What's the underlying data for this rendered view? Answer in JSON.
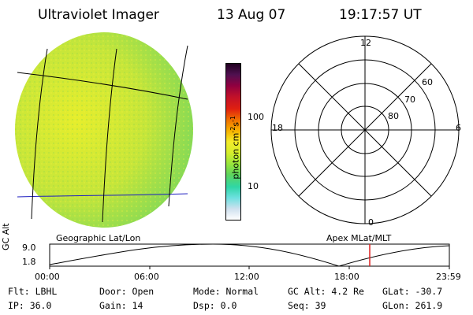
{
  "header": {
    "instrument": "Ultraviolet Imager",
    "date": "13 Aug 07",
    "time": "19:17:57 UT"
  },
  "colorbar": {
    "unit_main": "photon cm",
    "unit_exp1": "-2",
    "unit_mid": "s",
    "unit_exp2": "-1",
    "ticks": [
      "100",
      "10"
    ],
    "colors": [
      "#ffffff",
      "#cfe0ee",
      "#6ee0e0",
      "#2fd6a6",
      "#5ed45c",
      "#9ae63c",
      "#d6ee2c",
      "#f4ec2a",
      "#f7b200",
      "#f07000",
      "#e02010",
      "#c0102a",
      "#900040",
      "#501050",
      "#200020"
    ]
  },
  "polar_plot": {
    "labels": {
      "top": "12",
      "bottom": "0",
      "left": "18",
      "right": "6"
    },
    "lat_labels": [
      "60",
      "70",
      "80"
    ]
  },
  "left_panel_label": "Geographic Lat/Lon",
  "right_panel_label": "Apex  MLat/MLT",
  "altitude_plot": {
    "ylabel": "GC Alt",
    "y_ticks": [
      "9.0",
      "1.8"
    ],
    "x_ticks": [
      "00:00",
      "06:00",
      "12:00",
      "18:00",
      "23:59"
    ],
    "current_time_marker_color": "#dd2020"
  },
  "info": {
    "filter": "Flt: LBHL",
    "ip": "IP: 36.0",
    "door": "Door: Open",
    "gain": "Gain: 14",
    "mode": "Mode: Normal",
    "dsp": "Dsp:     0.0",
    "gc_alt": "GC Alt: 4.2 Re",
    "seq": "Seq: 39",
    "glat": "GLat: -30.7",
    "glon": "GLon: 261.9"
  }
}
